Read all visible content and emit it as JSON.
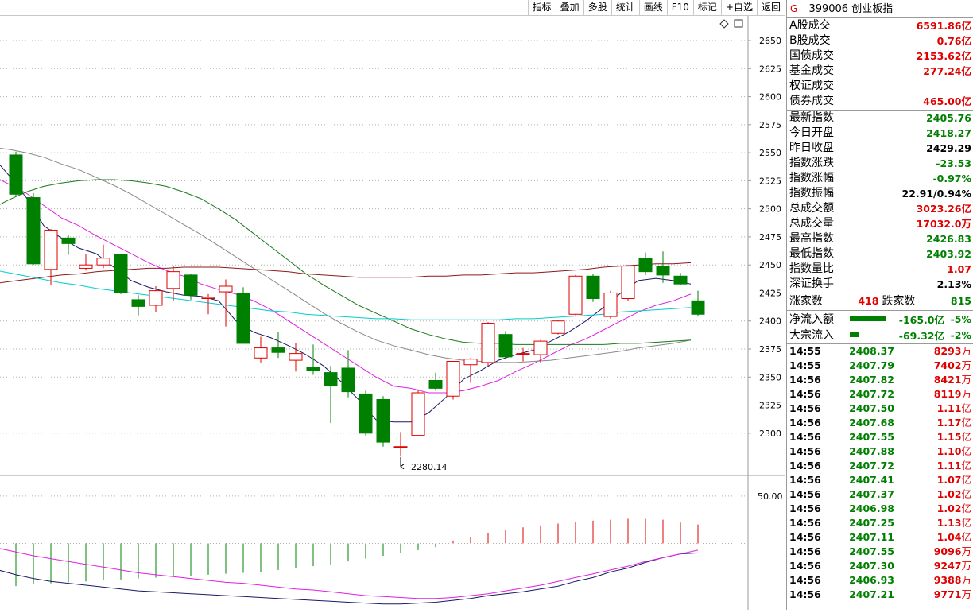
{
  "toolbar": [
    "指标",
    "叠加",
    "多股",
    "统计",
    "画线",
    "F10",
    "标记",
    "+自选",
    "返回"
  ],
  "chart_data": {
    "type": "candlestick",
    "price_axis": {
      "ticks": [
        2650,
        2625,
        2600,
        2575,
        2550,
        2525,
        2500,
        2475,
        2450,
        2425,
        2400,
        2375,
        2350,
        2325,
        2300
      ],
      "range": [
        2263,
        2672
      ]
    },
    "low_label": "2280.14",
    "low_value": 2280.14,
    "candles": [
      {
        "o": 2548,
        "h": 2551,
        "l": 2511,
        "c": 2513
      },
      {
        "o": 2510,
        "h": 2514,
        "l": 2450,
        "c": 2451
      },
      {
        "o": 2446,
        "h": 2482,
        "l": 2432,
        "c": 2481
      },
      {
        "o": 2474,
        "h": 2477,
        "l": 2459,
        "c": 2469
      },
      {
        "o": 2447,
        "h": 2460,
        "l": 2445,
        "c": 2450
      },
      {
        "o": 2450,
        "h": 2468,
        "l": 2447,
        "c": 2456
      },
      {
        "o": 2459,
        "h": 2460,
        "l": 2424,
        "c": 2425
      },
      {
        "o": 2419,
        "h": 2423,
        "l": 2405,
        "c": 2413
      },
      {
        "o": 2414,
        "h": 2431,
        "l": 2408,
        "c": 2427
      },
      {
        "o": 2429,
        "h": 2449,
        "l": 2418,
        "c": 2444
      },
      {
        "o": 2441,
        "h": 2442,
        "l": 2419,
        "c": 2423
      },
      {
        "o": 2420,
        "h": 2424,
        "l": 2406,
        "c": 2421
      },
      {
        "o": 2426,
        "h": 2437,
        "l": 2395,
        "c": 2431
      },
      {
        "o": 2425,
        "h": 2430,
        "l": 2380,
        "c": 2380
      },
      {
        "o": 2367,
        "h": 2386,
        "l": 2363,
        "c": 2376
      },
      {
        "o": 2376,
        "h": 2390,
        "l": 2367,
        "c": 2372
      },
      {
        "o": 2365,
        "h": 2380,
        "l": 2355,
        "c": 2371
      },
      {
        "o": 2359,
        "h": 2379,
        "l": 2352,
        "c": 2356
      },
      {
        "o": 2354,
        "h": 2360,
        "l": 2309,
        "c": 2342
      },
      {
        "o": 2358,
        "h": 2374,
        "l": 2332,
        "c": 2337
      },
      {
        "o": 2335,
        "h": 2338,
        "l": 2298,
        "c": 2300
      },
      {
        "o": 2330,
        "h": 2333,
        "l": 2288,
        "c": 2292
      },
      {
        "o": 2288,
        "h": 2301,
        "l": 2280.14,
        "c": 2288
      },
      {
        "o": 2298,
        "h": 2339,
        "l": 2297,
        "c": 2336
      },
      {
        "o": 2347,
        "h": 2354,
        "l": 2338,
        "c": 2340
      },
      {
        "o": 2333,
        "h": 2364,
        "l": 2330,
        "c": 2364
      },
      {
        "o": 2361,
        "h": 2367,
        "l": 2345,
        "c": 2366
      },
      {
        "o": 2363,
        "h": 2399,
        "l": 2360,
        "c": 2398
      },
      {
        "o": 2388,
        "h": 2391,
        "l": 2366,
        "c": 2368
      },
      {
        "o": 2371,
        "h": 2376,
        "l": 2364,
        "c": 2371
      },
      {
        "o": 2370,
        "h": 2383,
        "l": 2363,
        "c": 2382
      },
      {
        "o": 2389,
        "h": 2401,
        "l": 2388,
        "c": 2400
      },
      {
        "o": 2406,
        "h": 2441,
        "l": 2405,
        "c": 2440
      },
      {
        "o": 2440,
        "h": 2442,
        "l": 2417,
        "c": 2420
      },
      {
        "o": 2404,
        "h": 2427,
        "l": 2402,
        "c": 2425
      },
      {
        "o": 2420,
        "h": 2450,
        "l": 2418,
        "c": 2449
      },
      {
        "o": 2456,
        "h": 2461,
        "l": 2441,
        "c": 2444
      },
      {
        "o": 2449,
        "h": 2462,
        "l": 2434,
        "c": 2441
      },
      {
        "o": 2440,
        "h": 2443,
        "l": 2432,
        "c": 2433
      },
      {
        "o": 2418,
        "h": 2427,
        "l": 2404,
        "c": 2406
      }
    ],
    "ma": [
      {
        "color": "#1a1a66",
        "values": [
          2548,
          2530,
          2510,
          2485,
          2474,
          2465,
          2460,
          2448,
          2436,
          2430,
          2426,
          2423,
          2422,
          2418,
          2400,
          2390,
          2385,
          2378,
          2370,
          2360,
          2346,
          2330,
          2312,
          2310,
          2310,
          2318,
          2332,
          2348,
          2356,
          2365,
          2370,
          2374,
          2382,
          2390,
          2400,
          2412,
          2425,
          2436,
          2438,
          2436,
          2433
        ]
      },
      {
        "color": "#e020e0",
        "values": [
          2530,
          2522,
          2514,
          2503,
          2492,
          2485,
          2476,
          2468,
          2460,
          2452,
          2445,
          2440,
          2433,
          2428,
          2424,
          2418,
          2410,
          2400,
          2390,
          2380,
          2370,
          2360,
          2350,
          2342,
          2340,
          2336,
          2336,
          2338,
          2342,
          2347,
          2355,
          2362,
          2370,
          2378,
          2384,
          2392,
          2400,
          2408,
          2414,
          2418,
          2424
        ]
      },
      {
        "color": "#8a8a8a",
        "values": [
          2555,
          2553,
          2550,
          2546,
          2540,
          2535,
          2528,
          2521,
          2513,
          2504,
          2495,
          2486,
          2477,
          2467,
          2457,
          2447,
          2437,
          2427,
          2417,
          2407,
          2398,
          2390,
          2383,
          2378,
          2374,
          2370,
          2367,
          2365,
          2364,
          2363,
          2363,
          2364,
          2365,
          2367,
          2369,
          2371,
          2373,
          2376,
          2378,
          2380,
          2383
        ]
      },
      {
        "color": "#1a7a1a",
        "values": [
          2500,
          2508,
          2515,
          2520,
          2523,
          2525,
          2526,
          2526,
          2525,
          2523,
          2520,
          2515,
          2509,
          2500,
          2490,
          2478,
          2466,
          2454,
          2442,
          2432,
          2423,
          2414,
          2407,
          2400,
          2393,
          2388,
          2384,
          2381,
          2380,
          2380,
          2379,
          2379,
          2379,
          2379,
          2379,
          2379,
          2380,
          2380,
          2381,
          2382,
          2383
        ]
      },
      {
        "color": "#8b1a1a",
        "values": [
          2433,
          2435,
          2437,
          2439,
          2441,
          2442,
          2444,
          2445,
          2446,
          2447,
          2447,
          2448,
          2448,
          2448,
          2447,
          2446,
          2445,
          2444,
          2442,
          2441,
          2440,
          2439,
          2439,
          2439,
          2439,
          2440,
          2440,
          2441,
          2441,
          2442,
          2443,
          2443,
          2444,
          2445,
          2446,
          2448,
          2449,
          2450,
          2451,
          2451,
          2452
        ]
      },
      {
        "color": "#00cccc",
        "values": [
          2446,
          2443,
          2440,
          2437,
          2434,
          2432,
          2429,
          2427,
          2425,
          2423,
          2421,
          2419,
          2417,
          2415,
          2413,
          2411,
          2409,
          2408,
          2406,
          2405,
          2404,
          2403,
          2402,
          2402,
          2401,
          2401,
          2401,
          2401,
          2401,
          2401,
          2402,
          2402,
          2403,
          2404,
          2405,
          2406,
          2408,
          2409,
          2410,
          2411,
          2412
        ]
      }
    ],
    "indicator": {
      "ticks": [
        50
      ],
      "range": [
        -70,
        70
      ],
      "zero": 0,
      "bars": [
        -45,
        -43,
        -42,
        -41,
        -40,
        -39,
        -38,
        -37,
        -36,
        -35,
        -34,
        -33,
        -32,
        -31,
        -30,
        -28,
        -26,
        -24,
        -22,
        -19,
        -16,
        -13,
        -10,
        -7,
        -4,
        3,
        7,
        11,
        14,
        17,
        19,
        21,
        23,
        24,
        25,
        26,
        26,
        25,
        22,
        20
      ],
      "lines": [
        {
          "color": "#1a1a66",
          "values": [
            -28,
            -33,
            -37,
            -40,
            -42,
            -44,
            -46,
            -48,
            -50,
            -51,
            -52,
            -53,
            -54,
            -55,
            -56,
            -57,
            -58,
            -59,
            -60,
            -61,
            -62,
            -63,
            -64,
            -64,
            -63,
            -62,
            -60,
            -58,
            -55,
            -53,
            -51,
            -48,
            -45,
            -40,
            -36,
            -30,
            -26,
            -20,
            -15,
            -11,
            -10
          ]
        },
        {
          "color": "#e020e0",
          "values": [
            -5,
            -9,
            -13,
            -16,
            -19,
            -22,
            -25,
            -28,
            -31,
            -33,
            -35,
            -37,
            -39,
            -41,
            -42,
            -44,
            -46,
            -48,
            -49,
            -51,
            -53,
            -55,
            -56,
            -57,
            -58,
            -58,
            -57,
            -55,
            -53,
            -50,
            -47,
            -44,
            -40,
            -36,
            -32,
            -28,
            -24,
            -19,
            -15,
            -11,
            -7
          ]
        }
      ]
    }
  },
  "panel": {
    "code": "399006",
    "name": "创业板指",
    "g_label": "G",
    "turnover": [
      {
        "label": "A股成交",
        "value": "6591.86亿",
        "color": "red"
      },
      {
        "label": "B股成交",
        "value": "0.76亿",
        "color": "red"
      },
      {
        "label": "国债成交",
        "value": "2153.62亿",
        "color": "red"
      },
      {
        "label": "基金成交",
        "value": "277.24亿",
        "color": "red"
      },
      {
        "label": "权证成交",
        "value": "",
        "color": "red"
      },
      {
        "label": "债券成交",
        "value": "465.00亿",
        "color": "red"
      }
    ],
    "stats": [
      {
        "label": "最新指数",
        "value": "2405.76",
        "color": "green"
      },
      {
        "label": "今日开盘",
        "value": "2418.27",
        "color": "green"
      },
      {
        "label": "昨日收盘",
        "value": "2429.29",
        "color": "black"
      },
      {
        "label": "指数涨跌",
        "value": "-23.53",
        "color": "green"
      },
      {
        "label": "指数涨幅",
        "value": "-0.97%",
        "color": "green"
      },
      {
        "label": "指数振幅",
        "value": "22.91/0.94%",
        "color": "black"
      },
      {
        "label": "总成交额",
        "value": "3023.26亿",
        "color": "red"
      },
      {
        "label": "总成交量",
        "value": "17032.0万",
        "color": "red"
      },
      {
        "label": "最高指数",
        "value": "2426.83",
        "color": "green"
      },
      {
        "label": "最低指数",
        "value": "2403.92",
        "color": "green"
      },
      {
        "label": "指数量比",
        "value": "1.07",
        "color": "red"
      },
      {
        "label": "深证换手",
        "value": "2.13%",
        "color": "black"
      }
    ],
    "updown": {
      "up_label": "涨家数",
      "up_value": "418",
      "down_label": "跌家数",
      "down_value": "815"
    },
    "flows": [
      {
        "label": "净流入额",
        "value": "-165.0亿",
        "pct": "-5%",
        "bar": 0.46
      },
      {
        "label": "大宗流入",
        "value": "-69.32亿",
        "pct": "-2%",
        "bar": 0.12
      }
    ],
    "ticks": [
      {
        "time": "14:55",
        "price": "2408.37",
        "vol": "8293",
        "unit": "万"
      },
      {
        "time": "14:55",
        "price": "2407.79",
        "vol": "7402",
        "unit": "万"
      },
      {
        "time": "14:56",
        "price": "2407.82",
        "vol": "8421",
        "unit": "万"
      },
      {
        "time": "14:56",
        "price": "2407.72",
        "vol": "8119",
        "unit": "万"
      },
      {
        "time": "14:56",
        "price": "2407.50",
        "vol": "1.11",
        "unit": "亿"
      },
      {
        "time": "14:56",
        "price": "2407.68",
        "vol": "1.17",
        "unit": "亿"
      },
      {
        "time": "14:56",
        "price": "2407.55",
        "vol": "1.15",
        "unit": "亿"
      },
      {
        "time": "14:56",
        "price": "2407.88",
        "vol": "1.10",
        "unit": "亿"
      },
      {
        "time": "14:56",
        "price": "2407.72",
        "vol": "1.11",
        "unit": "亿"
      },
      {
        "time": "14:56",
        "price": "2407.41",
        "vol": "1.07",
        "unit": "亿"
      },
      {
        "time": "14:56",
        "price": "2407.37",
        "vol": "1.02",
        "unit": "亿"
      },
      {
        "time": "14:56",
        "price": "2406.98",
        "vol": "1.02",
        "unit": "亿"
      },
      {
        "time": "14:56",
        "price": "2407.25",
        "vol": "1.13",
        "unit": "亿"
      },
      {
        "time": "14:56",
        "price": "2407.11",
        "vol": "1.04",
        "unit": "亿"
      },
      {
        "time": "14:56",
        "price": "2407.55",
        "vol": "9096",
        "unit": "万"
      },
      {
        "time": "14:56",
        "price": "2407.30",
        "vol": "9247",
        "unit": "万"
      },
      {
        "time": "14:56",
        "price": "2406.93",
        "vol": "9388",
        "unit": "万"
      },
      {
        "time": "14:56",
        "price": "2407.21",
        "vol": "9771",
        "unit": "万"
      }
    ]
  },
  "colors": {
    "up": "#e00000",
    "down": "#008000",
    "grid": "#b0b0b0"
  }
}
